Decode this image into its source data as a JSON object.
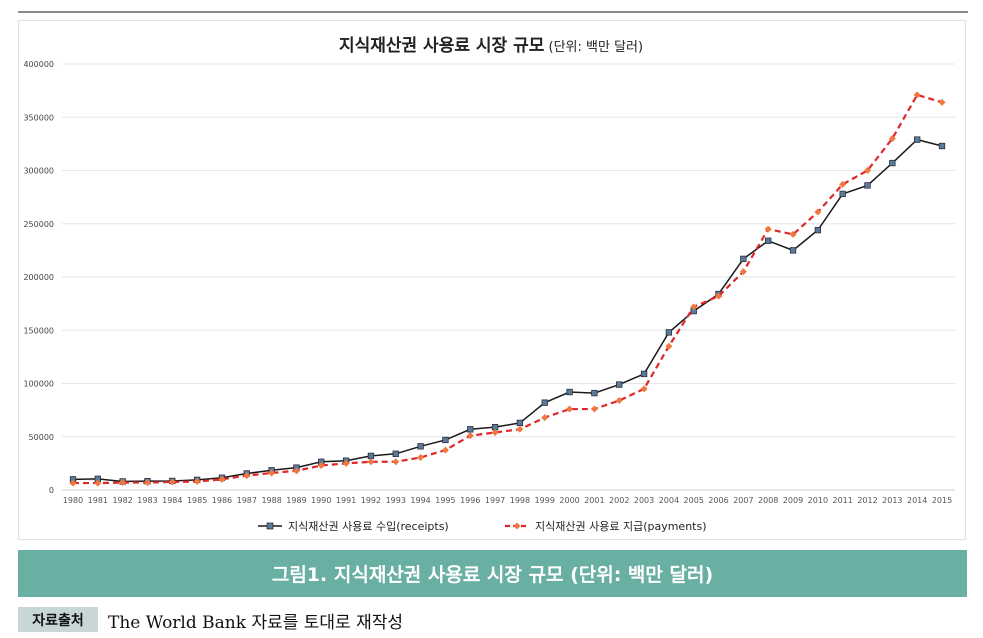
{
  "chart_data": {
    "type": "line",
    "title": "지식재산권 사용료 시장 규모",
    "title_unit": "(단위: 백만 달러)",
    "xlabel": "",
    "ylabel": "",
    "ylim": [
      0,
      400000
    ],
    "yticks": [
      0,
      50000,
      100000,
      150000,
      200000,
      250000,
      300000,
      350000,
      400000
    ],
    "grid": true,
    "legend": "bottom",
    "categories": [
      "1980",
      "1981",
      "1982",
      "1983",
      "1984",
      "1985",
      "1986",
      "1987",
      "1988",
      "1989",
      "1990",
      "1991",
      "1992",
      "1993",
      "1994",
      "1995",
      "1996",
      "1997",
      "1998",
      "1999",
      "2000",
      "2001",
      "2002",
      "2003",
      "2004",
      "2005",
      "2006",
      "2007",
      "2008",
      "2009",
      "2010",
      "2011",
      "2012",
      "2013",
      "2014",
      "2015"
    ],
    "series": [
      {
        "name": "지식재산권 사용료 수입(receipts)",
        "color": "#1a1a1a",
        "marker_color": "#5b7a99",
        "marker": "square",
        "dash": false,
        "values": [
          10000,
          10500,
          8000,
          8300,
          8500,
          9500,
          11500,
          15500,
          18500,
          21000,
          26500,
          27500,
          32000,
          34000,
          41000,
          47000,
          57000,
          59000,
          63000,
          82000,
          92000,
          91000,
          99000,
          109000,
          148000,
          168000,
          184000,
          217000,
          234000,
          225000,
          244000,
          278000,
          286000,
          307000,
          329000,
          323000
        ]
      },
      {
        "name": "지식재산권 사용료 지급(payments)",
        "color": "#e0282a",
        "marker_color": "#f07840",
        "marker": "diamond",
        "dash": true,
        "values": [
          6500,
          6500,
          7000,
          7000,
          7500,
          8000,
          10000,
          13500,
          16000,
          18000,
          23000,
          25000,
          26500,
          26500,
          30500,
          37500,
          51000,
          54000,
          57000,
          68000,
          76000,
          76000,
          84000,
          95000,
          135000,
          172000,
          182000,
          205000,
          245000,
          240000,
          261000,
          287000,
          300000,
          330000,
          371000,
          364000
        ]
      }
    ]
  },
  "caption": "그림1. 지식재산권 사용료 시장 규모 (단위: 백만 달러)",
  "source": {
    "label": "자료출처",
    "text": "The World Bank 자료를 토대로 재작성"
  },
  "colors": {
    "banner": "#6aafa3",
    "source_label_bg": "#c8d6d8"
  }
}
